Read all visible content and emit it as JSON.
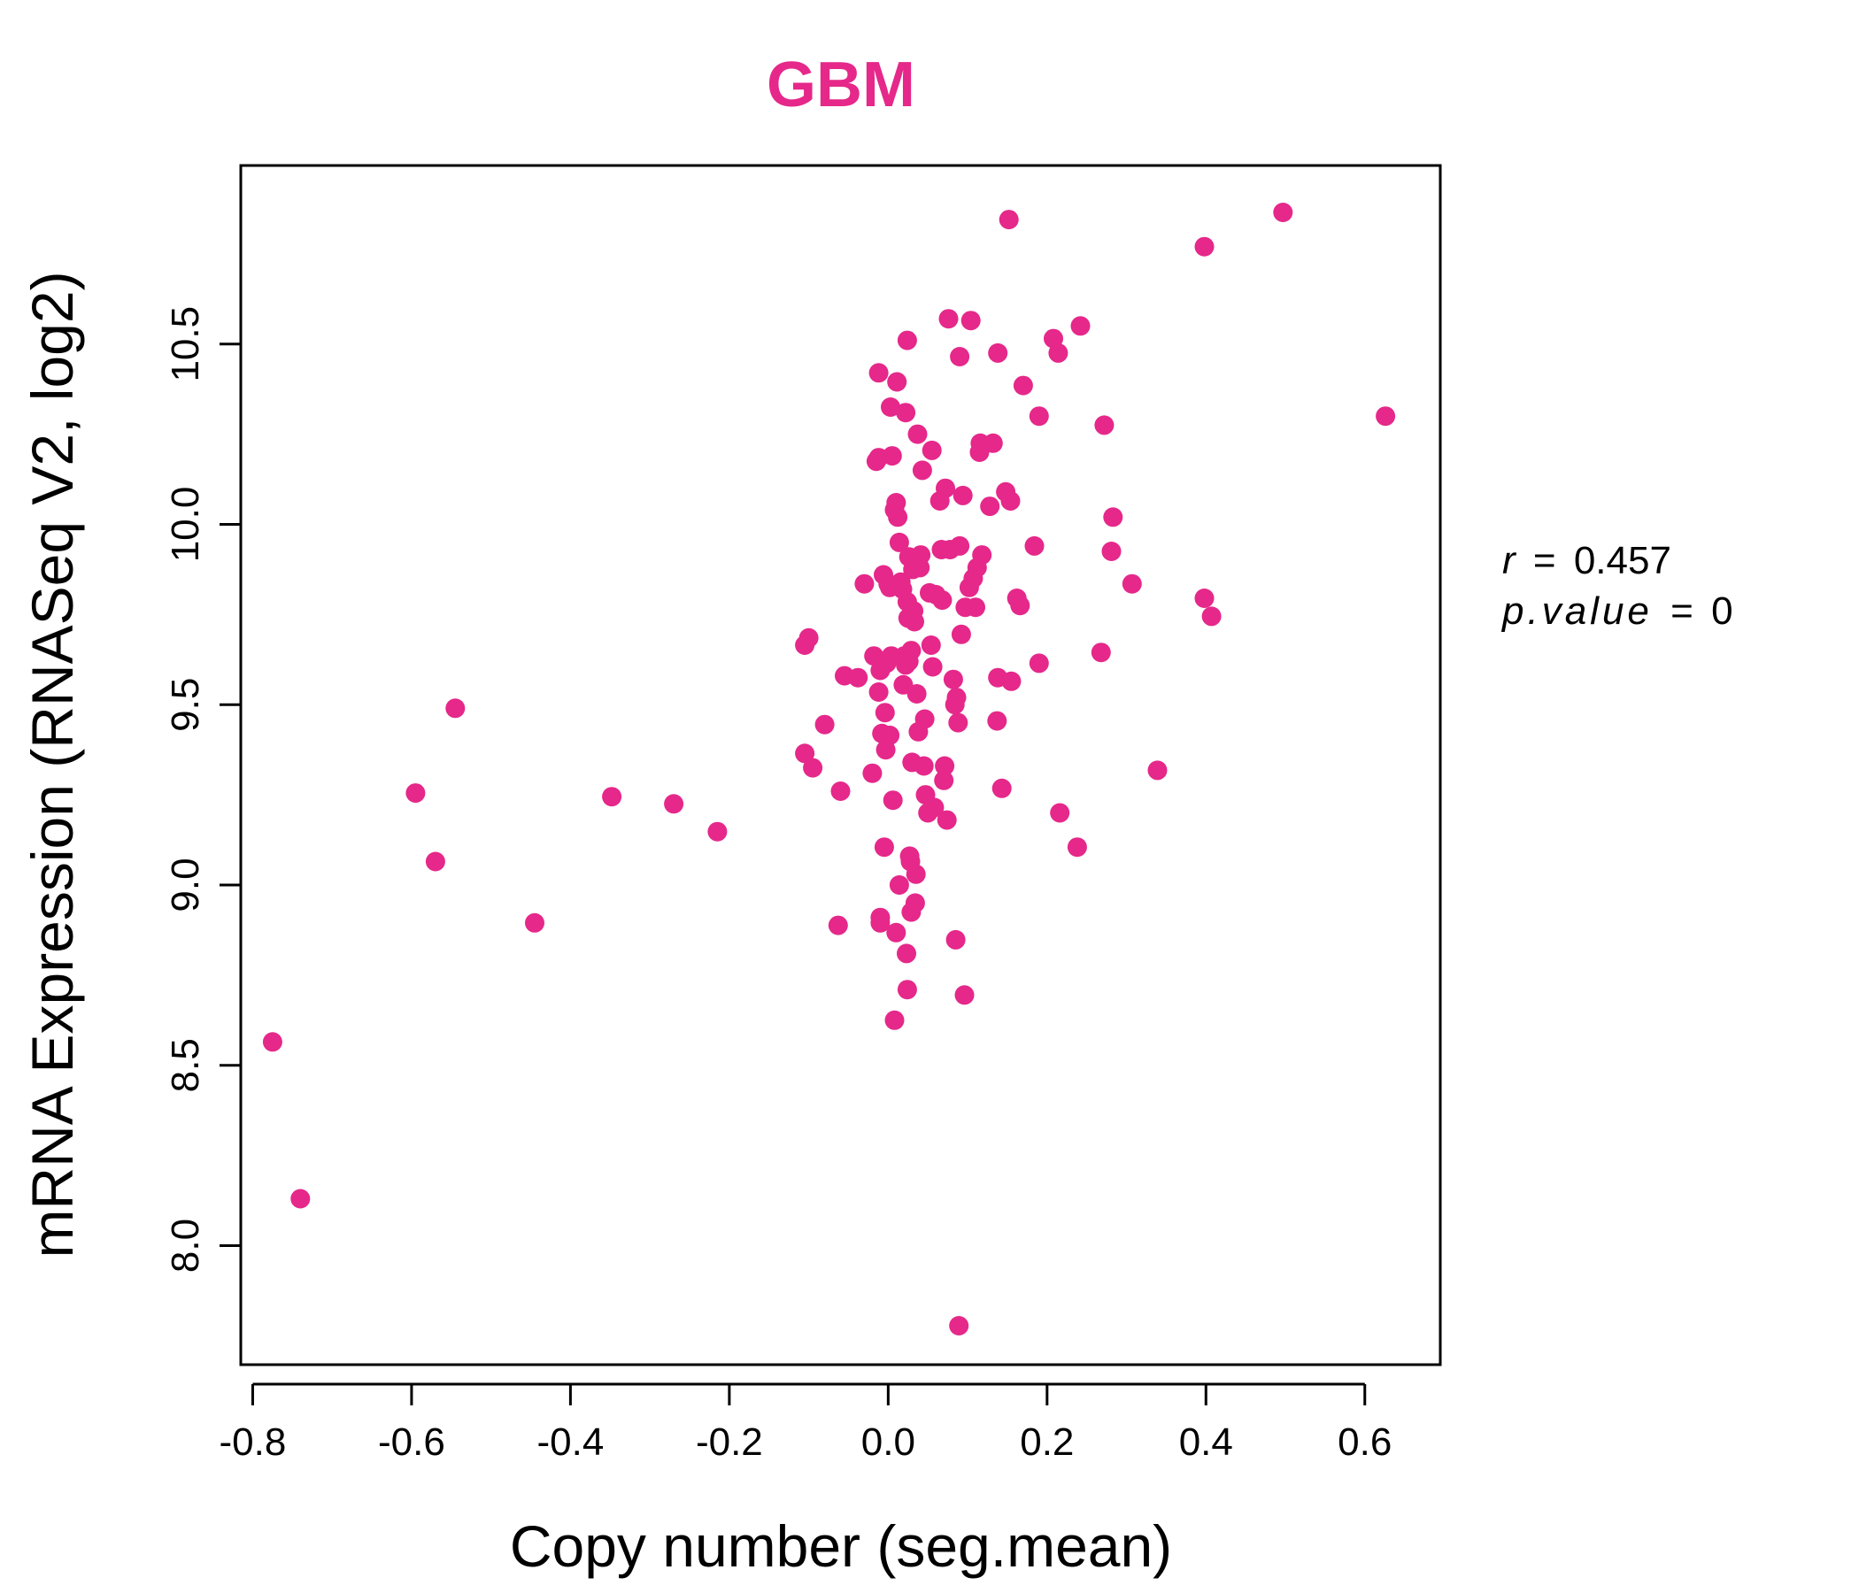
{
  "chart_data": {
    "type": "scatter",
    "title": "GBM",
    "xlabel": "Copy number (seg.mean)",
    "ylabel": "mRNA Expression (RNASeq V2, log2)",
    "xlim": [
      -0.815,
      0.695
    ],
    "ylim": [
      7.67,
      10.995
    ],
    "xticks": [
      -0.8,
      -0.6,
      -0.4,
      -0.2,
      0.0,
      0.2,
      0.4,
      0.6
    ],
    "xtick_labels": [
      "-0.8",
      "-0.6",
      "-0.4",
      "-0.2",
      "0.0",
      "0.2",
      "0.4",
      "0.6"
    ],
    "yticks": [
      8.0,
      8.5,
      9.0,
      9.5,
      10.0,
      10.5
    ],
    "ytick_labels": [
      "8.0",
      "8.5",
      "9.0",
      "9.5",
      "10.0",
      "10.5"
    ],
    "grid": false,
    "point_color": "#E5288A",
    "annotation": {
      "r_label": "r",
      "r_value": "0.457",
      "p_label": "p.value",
      "p_value": "0",
      "eq": "="
    },
    "points": [
      [
        -0.775,
        8.565
      ],
      [
        -0.74,
        8.13
      ],
      [
        -0.595,
        9.255
      ],
      [
        -0.57,
        9.065
      ],
      [
        -0.545,
        9.49
      ],
      [
        -0.445,
        8.895
      ],
      [
        -0.348,
        9.245
      ],
      [
        -0.27,
        9.225
      ],
      [
        -0.215,
        9.148
      ],
      [
        -0.105,
        9.665
      ],
      [
        -0.1,
        9.685
      ],
      [
        -0.105,
        9.365
      ],
      [
        -0.095,
        9.325
      ],
      [
        -0.08,
        9.445
      ],
      [
        -0.06,
        9.26
      ],
      [
        -0.063,
        8.888
      ],
      [
        -0.055,
        9.58
      ],
      [
        -0.038,
        9.575
      ],
      [
        -0.03,
        9.835
      ],
      [
        -0.02,
        9.31
      ],
      [
        -0.018,
        9.635
      ],
      [
        -0.015,
        10.175
      ],
      [
        -0.012,
        10.185
      ],
      [
        -0.012,
        10.42
      ],
      [
        -0.012,
        9.535
      ],
      [
        -0.01,
        8.91
      ],
      [
        -0.01,
        8.895
      ],
      [
        -0.01,
        9.595
      ],
      [
        -0.008,
        9.42
      ],
      [
        -0.006,
        9.86
      ],
      [
        -0.005,
        9.105
      ],
      [
        -0.004,
        9.478
      ],
      [
        -0.003,
        9.375
      ],
      [
        -0.002,
        9.615
      ],
      [
        0.0,
        9.835
      ],
      [
        0.002,
        9.825
      ],
      [
        0.002,
        9.415
      ],
      [
        0.003,
        10.325
      ],
      [
        0.004,
        9.635
      ],
      [
        0.005,
        10.19
      ],
      [
        0.006,
        9.235
      ],
      [
        0.008,
        8.625
      ],
      [
        0.008,
        10.04
      ],
      [
        0.01,
        10.06
      ],
      [
        0.01,
        8.868
      ],
      [
        0.011,
        10.395
      ],
      [
        0.012,
        10.02
      ],
      [
        0.014,
        9.95
      ],
      [
        0.014,
        9.0
      ],
      [
        0.016,
        9.84
      ],
      [
        0.018,
        9.82
      ],
      [
        0.019,
        9.555
      ],
      [
        0.02,
        9.635
      ],
      [
        0.022,
        10.31
      ],
      [
        0.022,
        9.61
      ],
      [
        0.023,
        8.81
      ],
      [
        0.024,
        9.785
      ],
      [
        0.024,
        10.51
      ],
      [
        0.024,
        8.71
      ],
      [
        0.025,
        9.74
      ],
      [
        0.026,
        9.91
      ],
      [
        0.026,
        9.62
      ],
      [
        0.027,
        9.08
      ],
      [
        0.028,
        9.065
      ],
      [
        0.029,
        9.65
      ],
      [
        0.029,
        8.925
      ],
      [
        0.03,
        9.34
      ],
      [
        0.031,
        9.875
      ],
      [
        0.032,
        9.76
      ],
      [
        0.033,
        9.73
      ],
      [
        0.034,
        8.95
      ],
      [
        0.035,
        9.03
      ],
      [
        0.036,
        9.9
      ],
      [
        0.036,
        9.53
      ],
      [
        0.037,
        10.25
      ],
      [
        0.038,
        9.425
      ],
      [
        0.04,
        9.88
      ],
      [
        0.041,
        9.915
      ],
      [
        0.043,
        10.15
      ],
      [
        0.045,
        9.33
      ],
      [
        0.046,
        9.46
      ],
      [
        0.047,
        9.25
      ],
      [
        0.05,
        9.2
      ],
      [
        0.052,
        9.81
      ],
      [
        0.054,
        9.665
      ],
      [
        0.055,
        10.205
      ],
      [
        0.056,
        9.605
      ],
      [
        0.058,
        9.215
      ],
      [
        0.06,
        9.805
      ],
      [
        0.065,
        10.065
      ],
      [
        0.067,
        9.93
      ],
      [
        0.068,
        9.79
      ],
      [
        0.07,
        9.29
      ],
      [
        0.071,
        9.33
      ],
      [
        0.072,
        10.1
      ],
      [
        0.074,
        9.18
      ],
      [
        0.076,
        10.57
      ],
      [
        0.078,
        9.93
      ],
      [
        0.082,
        9.57
      ],
      [
        0.084,
        9.5
      ],
      [
        0.085,
        8.848
      ],
      [
        0.086,
        9.52
      ],
      [
        0.088,
        9.45
      ],
      [
        0.089,
        7.778
      ],
      [
        0.09,
        10.465
      ],
      [
        0.09,
        9.94
      ],
      [
        0.092,
        9.695
      ],
      [
        0.094,
        10.08
      ],
      [
        0.096,
        8.695
      ],
      [
        0.097,
        9.77
      ],
      [
        0.102,
        9.825
      ],
      [
        0.104,
        10.565
      ],
      [
        0.107,
        9.85
      ],
      [
        0.11,
        9.77
      ],
      [
        0.112,
        9.88
      ],
      [
        0.115,
        10.2
      ],
      [
        0.116,
        10.225
      ],
      [
        0.118,
        9.915
      ],
      [
        0.128,
        10.05
      ],
      [
        0.132,
        10.225
      ],
      [
        0.137,
        9.455
      ],
      [
        0.138,
        10.475
      ],
      [
        0.138,
        9.575
      ],
      [
        0.143,
        9.268
      ],
      [
        0.148,
        10.09
      ],
      [
        0.152,
        10.845
      ],
      [
        0.154,
        10.065
      ],
      [
        0.155,
        9.565
      ],
      [
        0.162,
        9.795
      ],
      [
        0.166,
        9.775
      ],
      [
        0.17,
        10.385
      ],
      [
        0.184,
        9.94
      ],
      [
        0.19,
        10.3
      ],
      [
        0.19,
        9.615
      ],
      [
        0.208,
        10.515
      ],
      [
        0.214,
        10.475
      ],
      [
        0.216,
        9.2
      ],
      [
        0.238,
        9.105
      ],
      [
        0.242,
        10.55
      ],
      [
        0.268,
        9.645
      ],
      [
        0.272,
        10.275
      ],
      [
        0.281,
        9.925
      ],
      [
        0.283,
        10.02
      ],
      [
        0.307,
        9.835
      ],
      [
        0.339,
        9.318
      ],
      [
        0.398,
        9.795
      ],
      [
        0.398,
        10.77
      ],
      [
        0.407,
        9.745
      ],
      [
        0.497,
        10.865
      ],
      [
        0.626,
        10.3
      ]
    ]
  }
}
